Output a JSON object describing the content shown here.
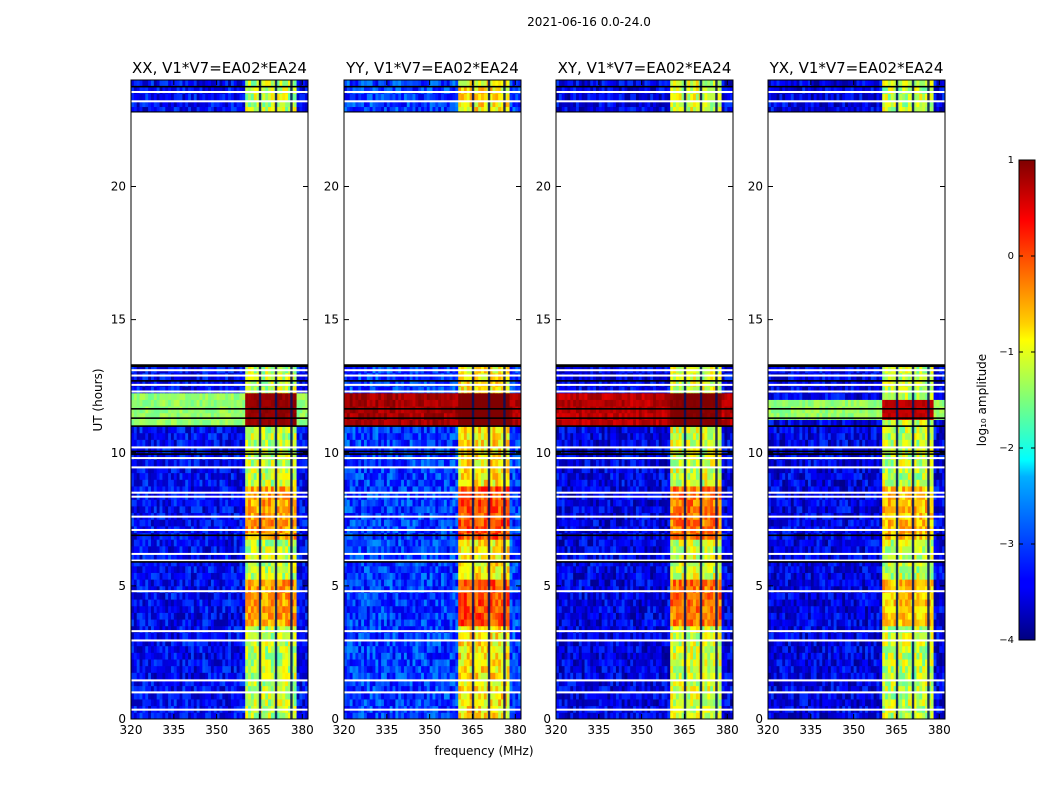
{
  "chart_data": {
    "type": "heatmap",
    "suptitle": "2021-06-16 0.0-24.0",
    "xlabel": "frequency (MHz)",
    "ylabel": "UT (hours)",
    "xlim": [
      320,
      382
    ],
    "ylim": [
      0,
      24
    ],
    "x_ticks": [
      320,
      335,
      350,
      365,
      380
    ],
    "y_ticks": [
      0,
      5,
      10,
      15,
      20
    ],
    "colormap": "jet",
    "colorbar": {
      "label": "log₁₀ amplitude",
      "range": [
        -4,
        1
      ],
      "ticks": [
        1,
        0,
        -1,
        -2,
        -3,
        -4
      ],
      "tick_labels": [
        "1",
        "0",
        "−1",
        "−2",
        "−3",
        "−4"
      ]
    },
    "data_gap_hours": [
      13.3,
      22.8
    ],
    "strong_band_mhz": [
      360,
      378
    ],
    "flagged_channels_mhz": [
      365.2,
      370.8,
      376.2
    ],
    "panels": [
      {
        "pol": "XX",
        "title": "XX, V1*V7=EA02*EA24",
        "baseline_level": -3.4,
        "band_level": -1.4,
        "burst_level": 0.8,
        "burst_hours": [
          10.9,
          12.2
        ],
        "band_high_level": -0.4
      },
      {
        "pol": "YY",
        "title": "YY, V1*V7=EA02*EA24",
        "baseline_level": -3.1,
        "band_level": -1.0,
        "burst_level": 1.0,
        "burst_hours": [
          10.9,
          12.3
        ],
        "band_high_level": 0.0
      },
      {
        "pol": "XY",
        "title": "XY, V1*V7=EA02*EA24",
        "baseline_level": -3.5,
        "band_level": -1.3,
        "burst_level": 0.9,
        "burst_hours": [
          10.9,
          12.2
        ],
        "band_high_level": -0.2
      },
      {
        "pol": "YX",
        "title": "YX, V1*V7=EA02*EA24",
        "baseline_level": -3.5,
        "band_level": -1.4,
        "burst_level": 0.6,
        "burst_hours": [
          11.2,
          12.1
        ],
        "band_high_level": -0.6
      }
    ]
  }
}
